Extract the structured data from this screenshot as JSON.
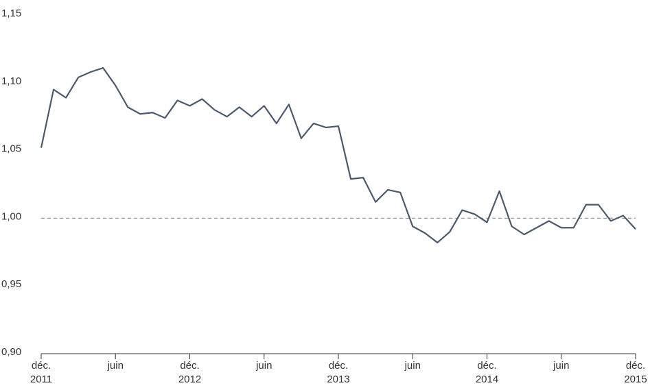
{
  "chart_data": {
    "type": "line",
    "categories": [
      "déc.\n2011",
      null,
      null,
      null,
      null,
      null,
      "juin",
      null,
      null,
      null,
      null,
      null,
      "déc.\n2012",
      null,
      null,
      null,
      null,
      null,
      "juin",
      null,
      null,
      null,
      null,
      null,
      "déc.\n2013",
      null,
      null,
      null,
      null,
      null,
      "juin",
      null,
      null,
      null,
      null,
      null,
      "déc.\n2014",
      null,
      null,
      null,
      null,
      null,
      "juin",
      null,
      null,
      null,
      null,
      null,
      "déc.\n2015"
    ],
    "series": [
      {
        "color": "#4a5a6e",
        "values": [
          1.052,
          1.095,
          1.089,
          1.104,
          1.108,
          1.111,
          1.098,
          1.082,
          1.077,
          1.078,
          1.074,
          1.087,
          1.083,
          1.088,
          1.08,
          1.075,
          1.082,
          1.075,
          1.083,
          1.07,
          1.084,
          1.059,
          1.07,
          1.067,
          1.068,
          1.029,
          1.03,
          1.012,
          1.021,
          1.019,
          0.994,
          0.989,
          0.982,
          0.99,
          1.006,
          1.003,
          0.997,
          1.02,
          0.994,
          0.988,
          0.993,
          0.998,
          0.993,
          0.993,
          1.01,
          1.01,
          0.998,
          1.002,
          0.992
        ]
      }
    ],
    "ylim": [
      0.9,
      1.15
    ],
    "yticks": [
      {
        "value": 0.9,
        "label": "0,90"
      },
      {
        "value": 0.95,
        "label": "0,95"
      },
      {
        "value": 1.0,
        "label": "1,00"
      },
      {
        "value": 1.05,
        "label": "1,05"
      },
      {
        "value": 1.1,
        "label": "1,10"
      },
      {
        "value": 1.15,
        "label": "1,15"
      }
    ],
    "reference_line": 1.0,
    "grid": false
  }
}
